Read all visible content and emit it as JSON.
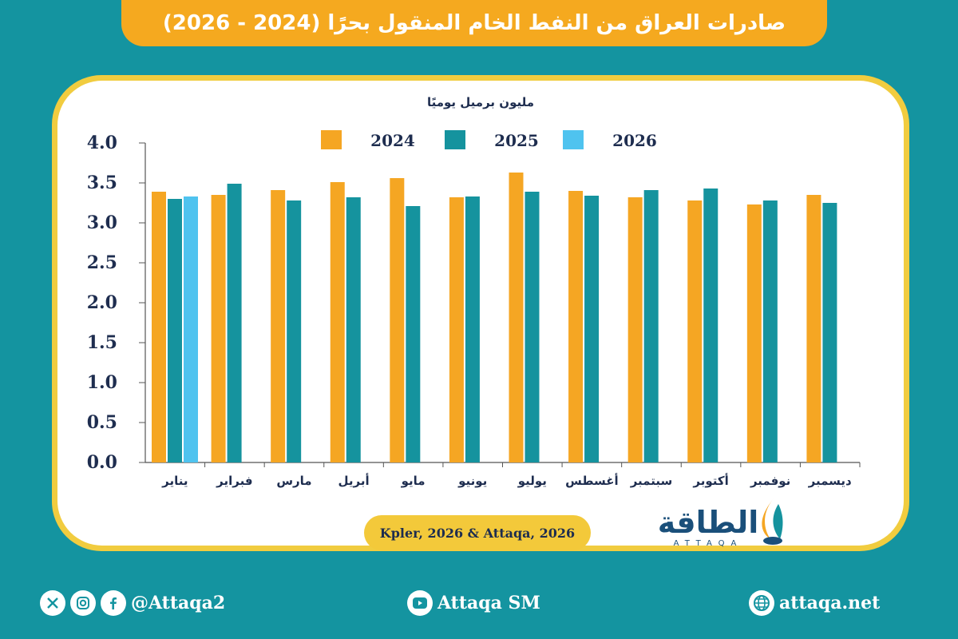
{
  "title": "صادرات العراق من النفط الخام المنقول بحرًا (2024 - 2026)",
  "source": "Kpler, 2026 & Attaqa, 2026",
  "brand": {
    "arabic": "الطاقة",
    "latin": "ATTAQA"
  },
  "footer": {
    "social_handle": "@Attaqa2",
    "youtube": "Attaqa SM",
    "website": "attaqa.net"
  },
  "colors": {
    "background": "#1494a0",
    "banner": "#f5a91f",
    "frame": "#f1cc3f",
    "s2024": "#f5a623",
    "s2025": "#15939e",
    "s2026": "#4fc3ef"
  },
  "chart_data": {
    "type": "bar",
    "unit_label": "مليون برميل يوميًا",
    "categories": [
      "يناير",
      "فبراير",
      "مارس",
      "أبريل",
      "مايو",
      "يونيو",
      "يوليو",
      "أغسطس",
      "سبتمبر",
      "أكتوبر",
      "نوفمبر",
      "ديسمبر"
    ],
    "series": [
      {
        "name": "2024",
        "color": "#f5a623",
        "values": [
          3.39,
          3.35,
          3.41,
          3.51,
          3.56,
          3.32,
          3.63,
          3.4,
          3.32,
          3.28,
          3.23,
          3.35
        ]
      },
      {
        "name": "2025",
        "color": "#15939e",
        "values": [
          3.3,
          3.49,
          3.28,
          3.32,
          3.21,
          3.33,
          3.39,
          3.34,
          3.41,
          3.43,
          3.28,
          3.25
        ]
      },
      {
        "name": "2026",
        "color": "#4fc3ef",
        "values": [
          3.33,
          null,
          null,
          null,
          null,
          null,
          null,
          null,
          null,
          null,
          null,
          null
        ]
      }
    ],
    "ylim": [
      0,
      4.0
    ],
    "yticks": [
      "0.0",
      "0.5",
      "1.0",
      "1.5",
      "2.0",
      "2.5",
      "3.0",
      "3.5",
      "4.0"
    ],
    "legend": "top-center",
    "grid": false
  }
}
